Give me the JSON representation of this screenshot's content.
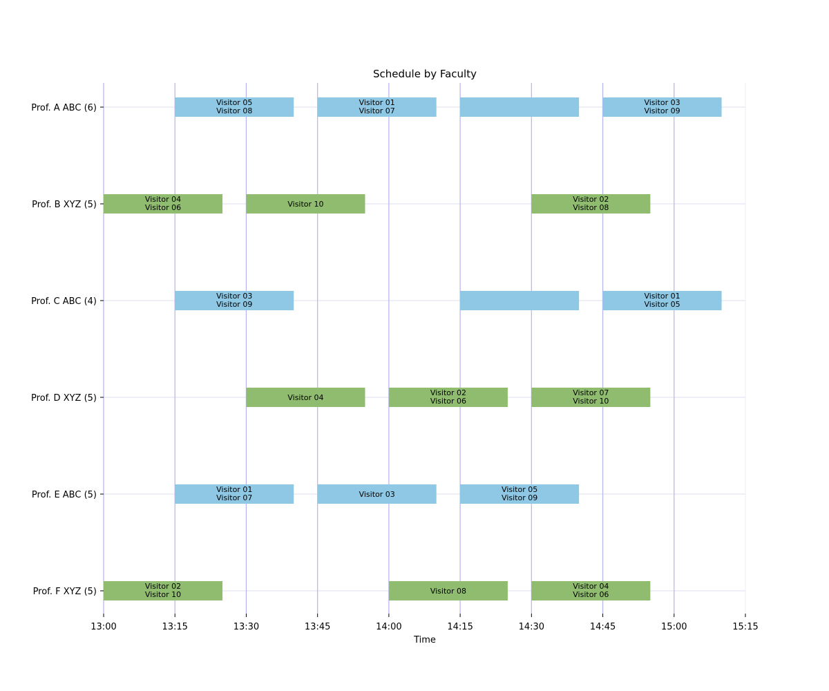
{
  "chart_data": {
    "type": "gantt",
    "title": "Schedule by Faculty",
    "xlabel": "Time",
    "xlim": [
      "13:00",
      "15:15"
    ],
    "x_ticks": [
      "13:00",
      "13:15",
      "13:30",
      "13:45",
      "14:00",
      "14:15",
      "14:30",
      "14:45",
      "15:00",
      "15:15"
    ],
    "vertical_lines": [
      "13:00",
      "13:15",
      "13:30",
      "13:45",
      "14:00",
      "14:15",
      "14:30",
      "14:45",
      "15:00"
    ],
    "colors": {
      "ABC": "#8ec8e4",
      "XYZ": "#8fbc6e",
      "vline": "#b5b3f0",
      "hgrid": "#dcdcec"
    },
    "faculty": [
      {
        "label": "Prof. A ABC (6)",
        "group": "ABC",
        "sessions": [
          {
            "start": "13:15",
            "end": "13:40",
            "visitors": [
              "Visitor 05",
              "Visitor 08"
            ]
          },
          {
            "start": "13:45",
            "end": "14:10",
            "visitors": [
              "Visitor 01",
              "Visitor 07"
            ]
          },
          {
            "start": "14:15",
            "end": "14:40",
            "visitors": []
          },
          {
            "start": "14:45",
            "end": "15:10",
            "visitors": [
              "Visitor 03",
              "Visitor 09"
            ]
          }
        ]
      },
      {
        "label": "Prof. B XYZ (5)",
        "group": "XYZ",
        "sessions": [
          {
            "start": "13:00",
            "end": "13:25",
            "visitors": [
              "Visitor 04",
              "Visitor 06"
            ]
          },
          {
            "start": "13:30",
            "end": "13:55",
            "visitors": [
              "Visitor 10"
            ]
          },
          {
            "start": "14:30",
            "end": "14:55",
            "visitors": [
              "Visitor 02",
              "Visitor 08"
            ]
          }
        ]
      },
      {
        "label": "Prof. C ABC (4)",
        "group": "ABC",
        "sessions": [
          {
            "start": "13:15",
            "end": "13:40",
            "visitors": [
              "Visitor 03",
              "Visitor 09"
            ]
          },
          {
            "start": "14:15",
            "end": "14:40",
            "visitors": []
          },
          {
            "start": "14:45",
            "end": "15:10",
            "visitors": [
              "Visitor 01",
              "Visitor 05"
            ]
          }
        ]
      },
      {
        "label": "Prof. D XYZ (5)",
        "group": "XYZ",
        "sessions": [
          {
            "start": "13:30",
            "end": "13:55",
            "visitors": [
              "Visitor 04"
            ]
          },
          {
            "start": "14:00",
            "end": "14:25",
            "visitors": [
              "Visitor 02",
              "Visitor 06"
            ]
          },
          {
            "start": "14:30",
            "end": "14:55",
            "visitors": [
              "Visitor 07",
              "Visitor 10"
            ]
          }
        ]
      },
      {
        "label": "Prof. E ABC (5)",
        "group": "ABC",
        "sessions": [
          {
            "start": "13:15",
            "end": "13:40",
            "visitors": [
              "Visitor 01",
              "Visitor 07"
            ]
          },
          {
            "start": "13:45",
            "end": "14:10",
            "visitors": [
              "Visitor 03"
            ]
          },
          {
            "start": "14:15",
            "end": "14:40",
            "visitors": [
              "Visitor 05",
              "Visitor 09"
            ]
          }
        ]
      },
      {
        "label": "Prof. F XYZ (5)",
        "group": "XYZ",
        "sessions": [
          {
            "start": "13:00",
            "end": "13:25",
            "visitors": [
              "Visitor 02",
              "Visitor 10"
            ]
          },
          {
            "start": "14:00",
            "end": "14:25",
            "visitors": [
              "Visitor 08"
            ]
          },
          {
            "start": "14:30",
            "end": "14:55",
            "visitors": [
              "Visitor 04",
              "Visitor 06"
            ]
          }
        ]
      }
    ]
  }
}
